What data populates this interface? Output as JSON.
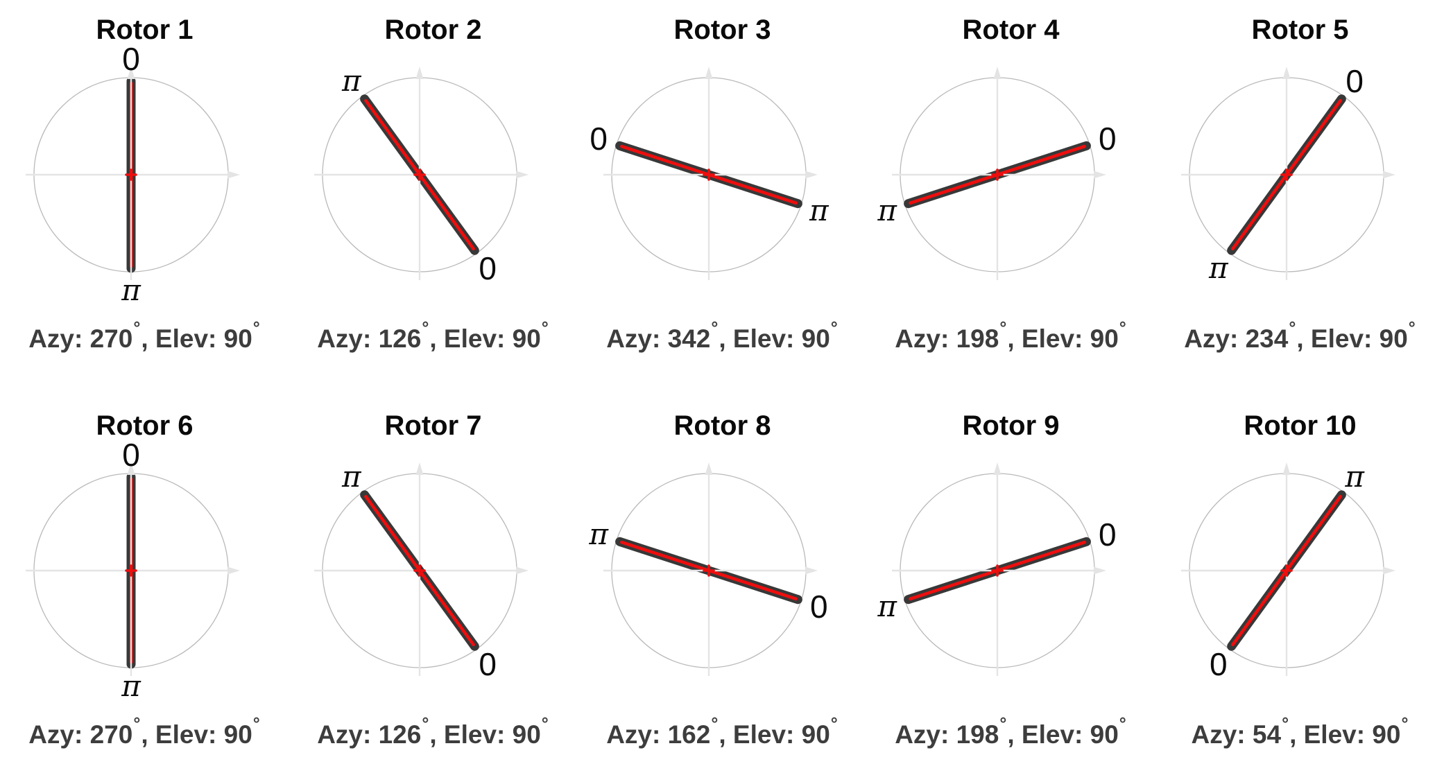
{
  "figure": {
    "background": "#ffffff",
    "layout": "5 columns x 2 rows of rotor orientation polar plots"
  },
  "chart_data": {
    "type": "line",
    "subtype": "rotor-orientation-polar-grid",
    "angle_convention": "each plot shows a diameter line through the origin of a unit circle; the 0-end is drawn at math angle (azimuth_deg - 180) measured CCW from +x, the pi-end is opposite",
    "axis_labels": {
      "zero": "0",
      "pi": "π"
    },
    "caption_format": {
      "azy_prefix": "Azy: ",
      "elev_prefix": ", Elev: ",
      "degree_symbol": "°"
    },
    "rotors": [
      {
        "title": "Rotor 1",
        "azimuth_deg": 270,
        "elevation_deg": 90
      },
      {
        "title": "Rotor 2",
        "azimuth_deg": 126,
        "elevation_deg": 90
      },
      {
        "title": "Rotor 3",
        "azimuth_deg": 342,
        "elevation_deg": 90
      },
      {
        "title": "Rotor 4",
        "azimuth_deg": 198,
        "elevation_deg": 90
      },
      {
        "title": "Rotor 5",
        "azimuth_deg": 234,
        "elevation_deg": 90
      },
      {
        "title": "Rotor 6",
        "azimuth_deg": 270,
        "elevation_deg": 90
      },
      {
        "title": "Rotor 7",
        "azimuth_deg": 126,
        "elevation_deg": 90
      },
      {
        "title": "Rotor 8",
        "azimuth_deg": 162,
        "elevation_deg": 90
      },
      {
        "title": "Rotor 9",
        "azimuth_deg": 198,
        "elevation_deg": 90
      },
      {
        "title": "Rotor 10",
        "azimuth_deg": 54,
        "elevation_deg": 90
      }
    ],
    "colors": {
      "line_dark": "#383838",
      "line_red": "#ee0e0e",
      "circle": "#b9b9b9",
      "axis": "#e4e4e4",
      "title_text": "#0a0a0a",
      "caption_text": "#3d3d3d",
      "label_text": "#0c0c0c"
    },
    "legend": "none",
    "grid": "off"
  }
}
